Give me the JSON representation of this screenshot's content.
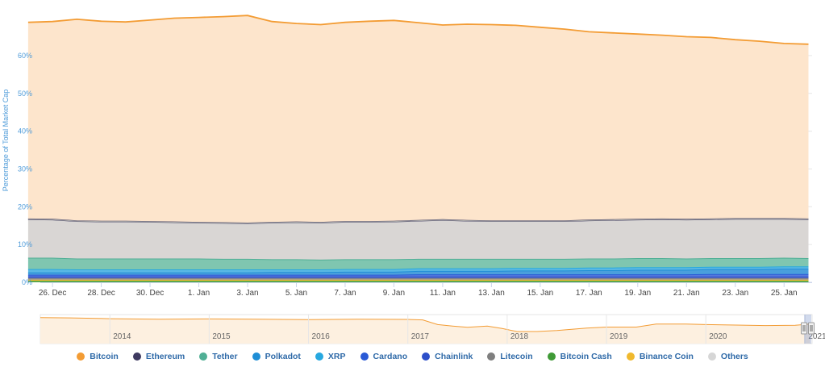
{
  "chart_data": {
    "type": "area",
    "title": "",
    "ylabel": "Percentage of Total Market Cap",
    "xlabel": "",
    "ylim": [
      0,
      73
    ],
    "yticks": [
      "0%",
      "10%",
      "20%",
      "30%",
      "40%",
      "50%",
      "60%"
    ],
    "x": [
      "25. Dec",
      "26. Dec",
      "27. Dec",
      "28. Dec",
      "29. Dec",
      "30. Dec",
      "31. Dec",
      "1. Jan",
      "2. Jan",
      "3. Jan",
      "4. Jan",
      "5. Jan",
      "6. Jan",
      "7. Jan",
      "8. Jan",
      "9. Jan",
      "10. Jan",
      "11. Jan",
      "12. Jan",
      "13. Jan",
      "14. Jan",
      "15. Jan",
      "16. Jan",
      "17. Jan",
      "18. Jan",
      "19. Jan",
      "20. Jan",
      "21. Jan",
      "22. Jan",
      "23. Jan",
      "24. Jan",
      "25. Jan",
      "26. Jan"
    ],
    "xticks": [
      "26. Dec",
      "28. Dec",
      "30. Dec",
      "1. Jan",
      "3. Jan",
      "5. Jan",
      "7. Jan",
      "9. Jan",
      "11. Jan",
      "13. Jan",
      "15. Jan",
      "17. Jan",
      "19. Jan",
      "21. Jan",
      "23. Jan",
      "25. Jan"
    ],
    "series": [
      {
        "name": "Bitcoin",
        "color": "#f39c34",
        "values": [
          68.8,
          69.0,
          69.6,
          69.1,
          68.9,
          69.4,
          69.9,
          70.1,
          70.3,
          70.6,
          69.0,
          68.5,
          68.2,
          68.8,
          69.1,
          69.3,
          68.7,
          68.1,
          68.3,
          68.2,
          68.0,
          67.5,
          67.0,
          66.3,
          66.0,
          65.7,
          65.4,
          65.0,
          64.8,
          64.2,
          63.8,
          63.2,
          63.0
        ]
      },
      {
        "name": "Ethereum",
        "color": "#3e3a60",
        "values": [
          10.9,
          10.9,
          11.1,
          11.4,
          11.3,
          11.2,
          11.1,
          11.0,
          10.9,
          10.8,
          13.2,
          13.7,
          13.6,
          13.8,
          13.7,
          13.3,
          13.3,
          13.6,
          13.1,
          12.9,
          13.2,
          13.3,
          13.6,
          14.0,
          14.1,
          14.6,
          14.9,
          14.9,
          15.1,
          15.3,
          15.4,
          16.0,
          16.0
        ]
      },
      {
        "name": "Tether",
        "color": "#50af95",
        "values": [
          3.0,
          3.0,
          2.9,
          2.9,
          2.9,
          2.9,
          2.9,
          2.9,
          2.8,
          2.8,
          2.7,
          2.7,
          2.6,
          2.6,
          2.6,
          2.6,
          2.5,
          2.5,
          2.5,
          2.5,
          2.4,
          2.4,
          2.4,
          2.4,
          2.4,
          2.4,
          2.4,
          2.3,
          2.3,
          2.3,
          2.3,
          2.3,
          2.2
        ]
      },
      {
        "name": "Polkadot",
        "color": "#1f8ed6",
        "values": [
          0.6,
          0.6,
          0.6,
          0.6,
          0.6,
          0.6,
          0.6,
          0.6,
          0.6,
          0.6,
          0.7,
          0.7,
          0.7,
          0.8,
          0.8,
          0.8,
          0.9,
          0.9,
          0.9,
          0.9,
          1.0,
          1.0,
          1.0,
          1.1,
          1.1,
          1.2,
          1.2,
          1.2,
          1.3,
          1.3,
          1.3,
          1.4,
          1.4
        ]
      },
      {
        "name": "XRP",
        "color": "#27a8e0",
        "values": [
          0.9,
          0.9,
          0.8,
          0.8,
          0.8,
          0.8,
          0.8,
          0.8,
          0.8,
          0.8,
          0.7,
          0.7,
          0.7,
          0.7,
          0.7,
          0.7,
          0.7,
          0.7,
          0.7,
          0.7,
          0.7,
          0.7,
          0.7,
          0.7,
          0.7,
          0.7,
          0.7,
          0.7,
          0.6,
          0.6,
          0.6,
          0.6,
          0.6
        ]
      },
      {
        "name": "Cardano",
        "color": "#2a5ad6",
        "values": [
          0.5,
          0.5,
          0.5,
          0.5,
          0.5,
          0.5,
          0.5,
          0.5,
          0.5,
          0.5,
          0.5,
          0.5,
          0.5,
          0.5,
          0.5,
          0.5,
          0.6,
          0.6,
          0.6,
          0.6,
          0.6,
          0.6,
          0.6,
          0.6,
          0.6,
          0.6,
          0.6,
          0.6,
          0.7,
          0.7,
          0.7,
          0.7,
          0.7
        ]
      },
      {
        "name": "Chainlink",
        "color": "#2c4fc9",
        "values": [
          0.4,
          0.4,
          0.4,
          0.4,
          0.4,
          0.4,
          0.4,
          0.4,
          0.4,
          0.4,
          0.4,
          0.4,
          0.4,
          0.4,
          0.4,
          0.4,
          0.4,
          0.4,
          0.4,
          0.4,
          0.4,
          0.4,
          0.4,
          0.4,
          0.4,
          0.4,
          0.4,
          0.4,
          0.4,
          0.4,
          0.4,
          0.4,
          0.4
        ]
      },
      {
        "name": "Litecoin",
        "color": "#7f7f7f",
        "values": [
          0.4,
          0.4,
          0.4,
          0.4,
          0.4,
          0.4,
          0.4,
          0.4,
          0.4,
          0.4,
          0.4,
          0.4,
          0.4,
          0.4,
          0.4,
          0.4,
          0.4,
          0.4,
          0.4,
          0.4,
          0.4,
          0.4,
          0.4,
          0.4,
          0.4,
          0.4,
          0.4,
          0.4,
          0.4,
          0.4,
          0.4,
          0.4,
          0.4
        ]
      },
      {
        "name": "Bitcoin Cash",
        "color": "#3f9a36",
        "values": [
          0.3,
          0.3,
          0.3,
          0.3,
          0.3,
          0.3,
          0.3,
          0.3,
          0.3,
          0.3,
          0.3,
          0.3,
          0.3,
          0.3,
          0.3,
          0.3,
          0.3,
          0.3,
          0.3,
          0.3,
          0.3,
          0.3,
          0.3,
          0.3,
          0.3,
          0.3,
          0.3,
          0.3,
          0.3,
          0.3,
          0.3,
          0.3,
          0.3
        ]
      },
      {
        "name": "Binance Coin",
        "color": "#f0b92e",
        "values": [
          0.3,
          0.3,
          0.3,
          0.3,
          0.3,
          0.3,
          0.3,
          0.3,
          0.3,
          0.3,
          0.3,
          0.3,
          0.3,
          0.3,
          0.3,
          0.3,
          0.3,
          0.3,
          0.3,
          0.3,
          0.3,
          0.3,
          0.3,
          0.3,
          0.3,
          0.3,
          0.3,
          0.3,
          0.3,
          0.3,
          0.3,
          0.3,
          0.3
        ]
      },
      {
        "name": "Others",
        "color": "#d6d6d6",
        "values": [
          10.3,
          10.2,
          10.0,
          9.9,
          9.9,
          9.8,
          9.7,
          9.6,
          9.6,
          9.5,
          9.8,
          9.9,
          9.9,
          10.0,
          10.0,
          10.1,
          10.2,
          10.4,
          10.2,
          10.1,
          10.1,
          10.1,
          10.1,
          10.2,
          10.3,
          10.3,
          10.4,
          10.4,
          10.4,
          10.5,
          10.5,
          10.4,
          10.4
        ]
      }
    ],
    "navigator": {
      "series_name": "Bitcoin",
      "x_years": [
        2013.3,
        2013.6,
        2014.0,
        2014.5,
        2015.0,
        2015.5,
        2016.0,
        2016.5,
        2017.0,
        2017.15,
        2017.3,
        2017.45,
        2017.6,
        2017.8,
        2017.95,
        2018.1,
        2018.3,
        2018.5,
        2018.8,
        2019.0,
        2019.3,
        2019.5,
        2019.8,
        2020.0,
        2020.3,
        2020.6,
        2020.9,
        2021.05
      ],
      "values": [
        94,
        93,
        90,
        88,
        89,
        88,
        86,
        88,
        87,
        85,
        66,
        60,
        55,
        60,
        50,
        38,
        38,
        42,
        52,
        56,
        56,
        68,
        68,
        66,
        64,
        62,
        63,
        68
      ],
      "year_labels": [
        "2014",
        "2015",
        "2016",
        "2017",
        "2018",
        "2019",
        "2020",
        "2021"
      ],
      "year_range": [
        2013.3,
        2021.07
      ]
    },
    "legend_position": "bottom-center",
    "grid": true
  }
}
